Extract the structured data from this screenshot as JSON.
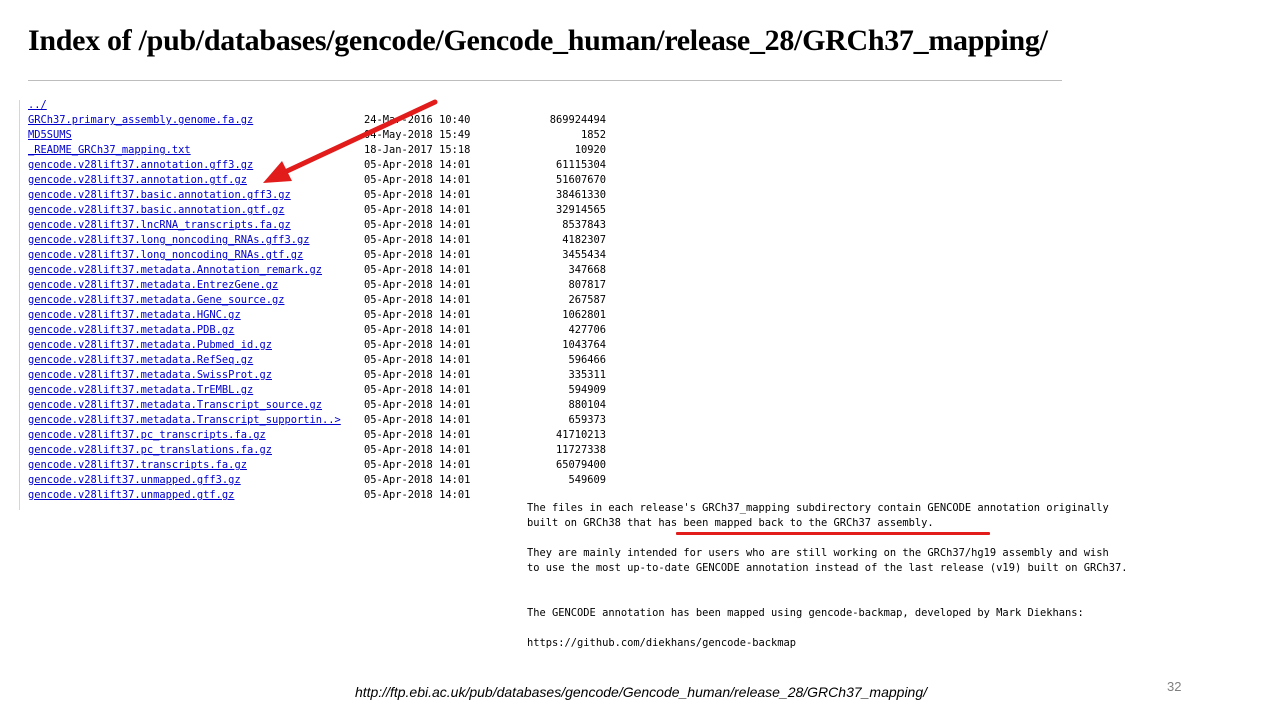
{
  "header": {
    "title": "Index of /pub/databases/gencode/Gencode_human/release_28/GRCh37_mapping/"
  },
  "listing": {
    "entries": [
      {
        "name": "../",
        "date": "",
        "size": ""
      },
      {
        "name": "GRCh37.primary_assembly.genome.fa.gz",
        "date": "24-Mar-2016 10:40",
        "size": "869924494"
      },
      {
        "name": "MD5SUMS",
        "date": "04-May-2018 15:49",
        "size": "1852"
      },
      {
        "name": "_README_GRCh37_mapping.txt",
        "date": "18-Jan-2017 15:18",
        "size": "10920"
      },
      {
        "name": "gencode.v28lift37.annotation.gff3.gz",
        "date": "05-Apr-2018 14:01",
        "size": "61115304"
      },
      {
        "name": "gencode.v28lift37.annotation.gtf.gz",
        "date": "05-Apr-2018 14:01",
        "size": "51607670"
      },
      {
        "name": "gencode.v28lift37.basic.annotation.gff3.gz",
        "date": "05-Apr-2018 14:01",
        "size": "38461330"
      },
      {
        "name": "gencode.v28lift37.basic.annotation.gtf.gz",
        "date": "05-Apr-2018 14:01",
        "size": "32914565"
      },
      {
        "name": "gencode.v28lift37.lncRNA_transcripts.fa.gz",
        "date": "05-Apr-2018 14:01",
        "size": "8537843"
      },
      {
        "name": "gencode.v28lift37.long_noncoding_RNAs.gff3.gz",
        "date": "05-Apr-2018 14:01",
        "size": "4182307"
      },
      {
        "name": "gencode.v28lift37.long_noncoding_RNAs.gtf.gz",
        "date": "05-Apr-2018 14:01",
        "size": "3455434"
      },
      {
        "name": "gencode.v28lift37.metadata.Annotation_remark.gz",
        "date": "05-Apr-2018 14:01",
        "size": "347668"
      },
      {
        "name": "gencode.v28lift37.metadata.EntrezGene.gz",
        "date": "05-Apr-2018 14:01",
        "size": "807817"
      },
      {
        "name": "gencode.v28lift37.metadata.Gene_source.gz",
        "date": "05-Apr-2018 14:01",
        "size": "267587"
      },
      {
        "name": "gencode.v28lift37.metadata.HGNC.gz",
        "date": "05-Apr-2018 14:01",
        "size": "1062801"
      },
      {
        "name": "gencode.v28lift37.metadata.PDB.gz",
        "date": "05-Apr-2018 14:01",
        "size": "427706"
      },
      {
        "name": "gencode.v28lift37.metadata.Pubmed_id.gz",
        "date": "05-Apr-2018 14:01",
        "size": "1043764"
      },
      {
        "name": "gencode.v28lift37.metadata.RefSeq.gz",
        "date": "05-Apr-2018 14:01",
        "size": "596466"
      },
      {
        "name": "gencode.v28lift37.metadata.SwissProt.gz",
        "date": "05-Apr-2018 14:01",
        "size": "335311"
      },
      {
        "name": "gencode.v28lift37.metadata.TrEMBL.gz",
        "date": "05-Apr-2018 14:01",
        "size": "594909"
      },
      {
        "name": "gencode.v28lift37.metadata.Transcript_source.gz",
        "date": "05-Apr-2018 14:01",
        "size": "880104"
      },
      {
        "name": "gencode.v28lift37.metadata.Transcript_supportin..>",
        "date": "05-Apr-2018 14:01",
        "size": "659373"
      },
      {
        "name": "gencode.v28lift37.pc_transcripts.fa.gz",
        "date": "05-Apr-2018 14:01",
        "size": "41710213"
      },
      {
        "name": "gencode.v28lift37.pc_translations.fa.gz",
        "date": "05-Apr-2018 14:01",
        "size": "11727338"
      },
      {
        "name": "gencode.v28lift37.transcripts.fa.gz",
        "date": "05-Apr-2018 14:01",
        "size": "65079400"
      },
      {
        "name": "gencode.v28lift37.unmapped.gff3.gz",
        "date": "05-Apr-2018 14:01",
        "size": "549609"
      },
      {
        "name": "gencode.v28lift37.unmapped.gtf.gz",
        "date": "05-Apr-2018 14:01",
        "size": ""
      }
    ]
  },
  "readme": {
    "para1_line1": "The files in each release's GRCh37_mapping subdirectory contain GENCODE annotation originally",
    "para1_line2": "built on GRCh38 that has been mapped back to the GRCh37 assembly.",
    "para2_line1": "They are mainly intended for users who are still working on the GRCh37/hg19 assembly and wish",
    "para2_line2": "to use the most up-to-date GENCODE annotation instead of the last release (v19) built on GRCh37.",
    "para3": "The GENCODE annotation has been mapped using gencode-backmap, developed by Mark Diekhans:",
    "para4": "https://github.com/diekhans/gencode-backmap"
  },
  "annotations": {
    "arrow_icon": "red-arrow-icon",
    "arrow_color": "#e21b1b",
    "underline_color": "#e21b1b"
  },
  "footer": {
    "source_url": "http://ftp.ebi.ac.uk/pub/databases/gencode/Gencode_human/release_28/GRCh37_mapping/",
    "slide_number": "32"
  }
}
